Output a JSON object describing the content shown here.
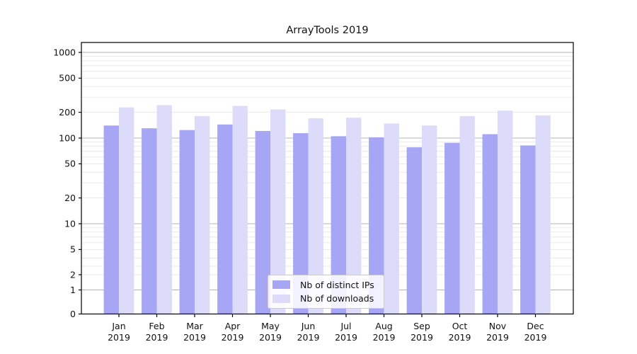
{
  "chart_data": {
    "type": "bar",
    "title": "ArrayTools 2019",
    "categories": [
      "Jan",
      "Feb",
      "Mar",
      "Apr",
      "May",
      "Jun",
      "Jul",
      "Aug",
      "Sep",
      "Oct",
      "Nov",
      "Dec"
    ],
    "category_year": "2019",
    "series": [
      {
        "name": "Nb of distinct IPs",
        "color": "#a6a6f4",
        "values": [
          140,
          130,
          124,
          144,
          121,
          114,
          105,
          102,
          78,
          88,
          111,
          82
        ]
      },
      {
        "name": "Nb of downloads",
        "color": "#dcdcfa",
        "values": [
          228,
          242,
          180,
          237,
          216,
          170,
          173,
          148,
          140,
          180,
          209,
          184
        ]
      }
    ],
    "yscale": "symlog",
    "yticks": [
      0,
      1,
      2,
      5,
      10,
      20,
      50,
      100,
      200,
      500,
      1000
    ],
    "ylim": [
      0,
      1300
    ],
    "grid": "horizontal major solid, minor faint",
    "legend_position": "inside lower-center",
    "colors": {
      "major_grid": "#b3b3b3",
      "minor_grid": "#e8e8e8",
      "spine": "#000000",
      "text": "#111111"
    }
  }
}
